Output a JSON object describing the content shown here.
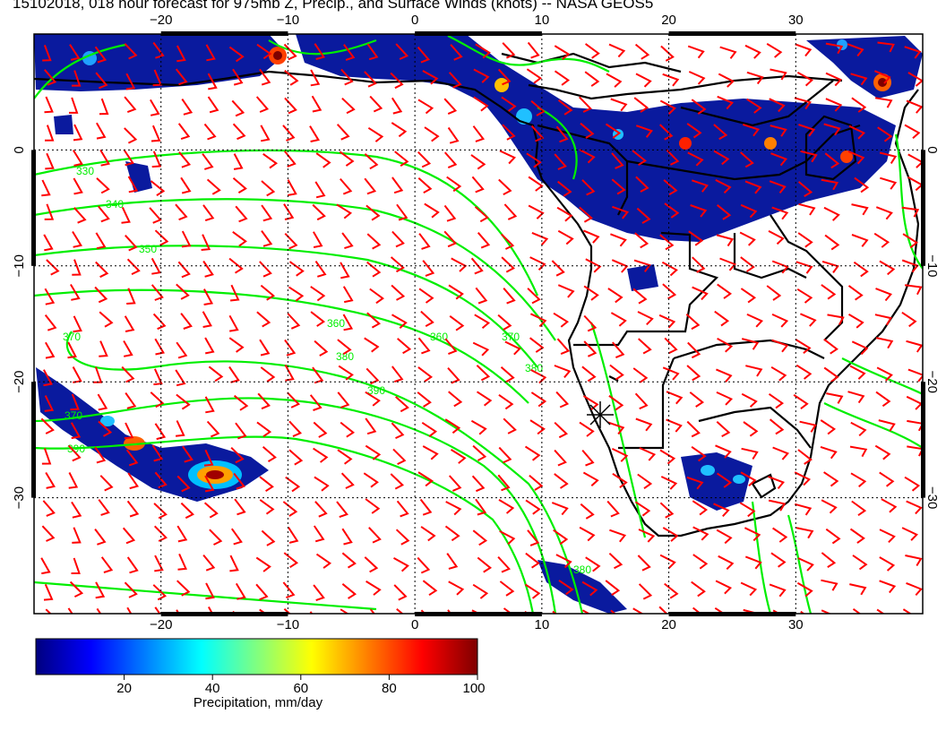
{
  "title": "15102018, 018 hour forecast for 975mb Z, Precip., and Surface Winds (knots) -- NASA GEOS5",
  "map": {
    "lon_range": [
      -30,
      40
    ],
    "lat_range": [
      -40,
      10
    ],
    "lon_ticks": [
      {
        "value": -20,
        "label": "−20"
      },
      {
        "value": -10,
        "label": "−10"
      },
      {
        "value": 0,
        "label": "0"
      },
      {
        "value": 10,
        "label": "10"
      },
      {
        "value": 20,
        "label": "20"
      },
      {
        "value": 30,
        "label": "30"
      }
    ],
    "lat_ticks": [
      {
        "value": 0,
        "label": "0"
      },
      {
        "value": -10,
        "label": "−10"
      },
      {
        "value": -20,
        "label": "−20"
      },
      {
        "value": -30,
        "label": "−30"
      }
    ],
    "contour_labels": [
      "330",
      "340",
      "350",
      "360",
      "370",
      "380",
      "390",
      "370",
      "390",
      "360",
      "370",
      "380",
      "380"
    ],
    "colors": {
      "wind_barb": "#ff0000",
      "contour": "#00ee00",
      "coast": "#000000"
    }
  },
  "colorbar": {
    "label": "Precipitation, mm/day",
    "ticks": [
      "20",
      "40",
      "60",
      "80",
      "100"
    ],
    "colors": [
      "#00007f",
      "#0000ff",
      "#0080ff",
      "#00ffff",
      "#80ff80",
      "#ffff00",
      "#ff8000",
      "#ff0000",
      "#7f0000"
    ]
  }
}
